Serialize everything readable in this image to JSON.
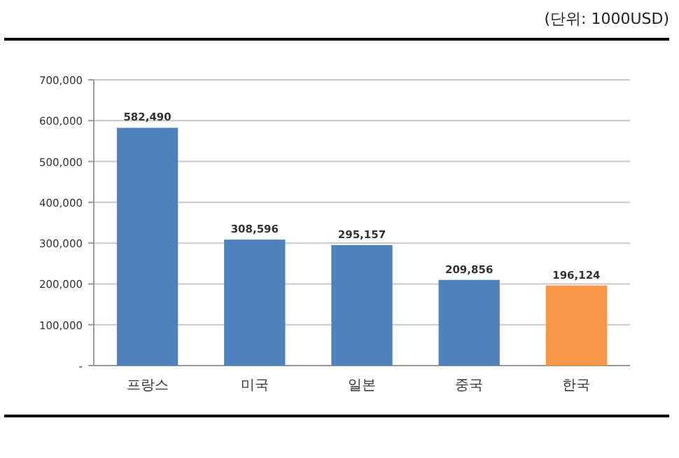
{
  "chart_data": {
    "type": "bar",
    "annotations": [
      "(단위: 1000USD)"
    ],
    "categories": [
      "프랑스",
      "미국",
      "일본",
      "중국",
      "한국"
    ],
    "values": [
      582490,
      308596,
      295157,
      209856,
      196124
    ],
    "colors": [
      "#4f81bd",
      "#4f81bd",
      "#4f81bd",
      "#4f81bd",
      "#f79646"
    ],
    "ylim": [
      0,
      700000
    ],
    "yticks": [
      {
        "value": 0,
        "label": "-"
      },
      {
        "value": 100000,
        "label": "100,000"
      },
      {
        "value": 200000,
        "label": "200,000"
      },
      {
        "value": 300000,
        "label": "300,000"
      },
      {
        "value": 400000,
        "label": "400,000"
      },
      {
        "value": 500000,
        "label": "500,000"
      },
      {
        "value": 600000,
        "label": "600,000"
      },
      {
        "value": 700000,
        "label": "700,000"
      }
    ],
    "value_labels": [
      "582,490",
      "308,596",
      "295,157",
      "209,856",
      "196,124"
    ],
    "grid": "y"
  }
}
